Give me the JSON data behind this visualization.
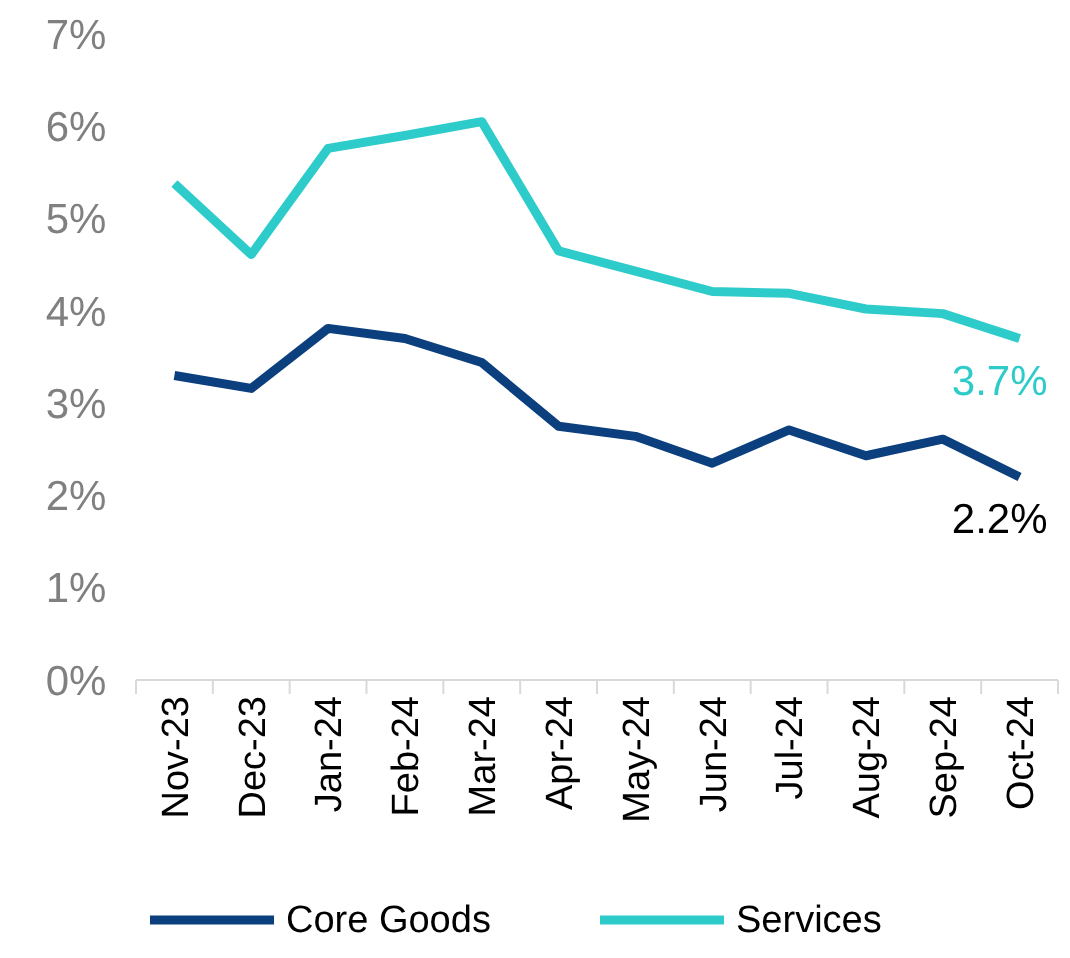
{
  "chart_data": {
    "type": "line",
    "categories": [
      "Nov-23",
      "Dec-23",
      "Jan-24",
      "Feb-24",
      "Mar-24",
      "Apr-24",
      "May-24",
      "Jun-24",
      "Jul-24",
      "Aug-24",
      "Sep-24",
      "Oct-24"
    ],
    "series": [
      {
        "name": "Core Goods",
        "color": "#0b3f7e",
        "values": [
          3.3,
          3.16,
          3.81,
          3.7,
          3.44,
          2.75,
          2.64,
          2.35,
          2.71,
          2.43,
          2.61,
          2.2
        ],
        "value_labels": [
          null,
          null,
          null,
          null,
          null,
          null,
          null,
          null,
          null,
          null,
          null,
          "2.2%"
        ]
      },
      {
        "name": "Services",
        "color": "#2ecbcb",
        "values": [
          5.38,
          4.61,
          5.76,
          5.9,
          6.05,
          4.65,
          4.43,
          4.21,
          4.19,
          4.02,
          3.97,
          3.7
        ],
        "value_labels": [
          null,
          null,
          null,
          null,
          null,
          null,
          null,
          null,
          null,
          null,
          null,
          "3.7%"
        ]
      }
    ],
    "ylim": [
      0,
      7
    ],
    "yticks": [
      {
        "value": 0,
        "label": "0%"
      },
      {
        "value": 1,
        "label": "1%"
      },
      {
        "value": 2,
        "label": "2%"
      },
      {
        "value": 3,
        "label": "3%"
      },
      {
        "value": 4,
        "label": "4%"
      },
      {
        "value": 5,
        "label": "5%"
      },
      {
        "value": 6,
        "label": "6%"
      },
      {
        "value": 7,
        "label": "7%"
      }
    ],
    "grid": false,
    "legend": "bottom",
    "marker": "none",
    "line_style": "solid"
  }
}
